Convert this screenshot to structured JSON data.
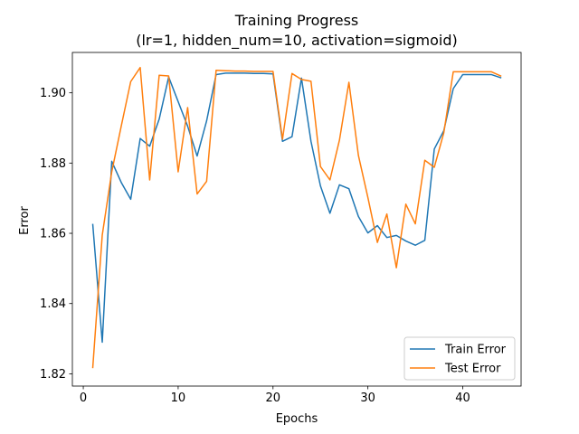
{
  "chart_data": {
    "type": "line",
    "title": "Training Progress",
    "subtitle": "(lr=1, hidden_num=10, activation=sigmoid)",
    "xlabel": "Epochs",
    "ylabel": "Error",
    "xlim": [
      -1.15,
      46.15
    ],
    "ylim": [
      1.8165,
      1.9115
    ],
    "xticks": [
      0,
      10,
      20,
      30,
      40
    ],
    "yticks": [
      1.82,
      1.84,
      1.86,
      1.88,
      1.9
    ],
    "ytick_labels": [
      "1.82",
      "1.84",
      "1.86",
      "1.88",
      "1.90"
    ],
    "grid": false,
    "legend_position": "lower-right",
    "x": [
      1,
      2,
      3,
      4,
      5,
      6,
      7,
      8,
      9,
      10,
      11,
      12,
      13,
      14,
      15,
      16,
      17,
      18,
      19,
      20,
      21,
      22,
      23,
      24,
      25,
      26,
      27,
      28,
      29,
      30,
      31,
      32,
      33,
      34,
      35,
      36,
      37,
      38,
      39,
      40,
      41,
      42,
      43,
      44
    ],
    "series": [
      {
        "name": "Train Error",
        "color": "#1f77b4",
        "values": [
          1.8625,
          1.829,
          1.8805,
          1.8745,
          1.8697,
          1.887,
          1.8848,
          1.8925,
          1.9045,
          1.8975,
          1.8905,
          1.882,
          1.892,
          1.9052,
          1.9056,
          1.9056,
          1.9056,
          1.9055,
          1.9055,
          1.9054,
          1.8862,
          1.8875,
          1.9042,
          1.8862,
          1.8735,
          1.8657,
          1.8738,
          1.8727,
          1.8648,
          1.8601,
          1.8622,
          1.8588,
          1.8594,
          1.8578,
          1.8566,
          1.858,
          1.884,
          1.8892,
          1.9012,
          1.9052,
          1.9052,
          1.9052,
          1.9052,
          1.9043
        ]
      },
      {
        "name": "Test Error",
        "color": "#ff7f0e",
        "values": [
          1.8218,
          1.8595,
          1.8775,
          1.8905,
          1.9032,
          1.9072,
          1.8752,
          1.905,
          1.9048,
          1.8775,
          1.8958,
          1.8712,
          1.8748,
          1.9064,
          1.9063,
          1.9062,
          1.9062,
          1.9061,
          1.9061,
          1.9061,
          1.8868,
          1.9055,
          1.9038,
          1.9033,
          1.879,
          1.8752,
          1.8865,
          1.903,
          1.8822,
          1.8702,
          1.8574,
          1.8655,
          1.8502,
          1.8683,
          1.8627,
          1.8808,
          1.8788,
          1.8886,
          1.906,
          1.906,
          1.906,
          1.906,
          1.906,
          1.9048
        ]
      }
    ]
  }
}
